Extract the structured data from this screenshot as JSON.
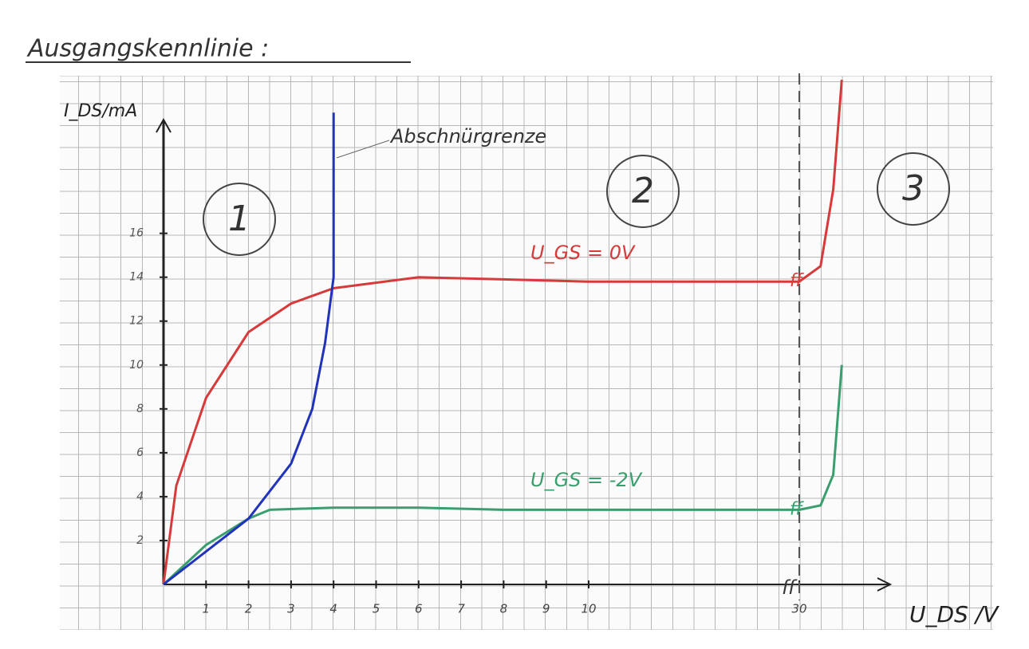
{
  "chart_data": {
    "type": "line",
    "title": "Ausgangskennlinie :",
    "x_label": "U_DS /V",
    "y_label": "I_DS/mA",
    "break_label": "ff",
    "region_labels": [
      "1",
      "2",
      "3"
    ],
    "xlim": [
      0,
      32
    ],
    "ylim": [
      0,
      23
    ],
    "xticks": [
      1,
      2,
      3,
      4,
      5,
      6,
      7,
      8,
      9,
      10,
      30
    ],
    "yticks": [
      2,
      4,
      6,
      8,
      10,
      12,
      14,
      16
    ],
    "series": [
      {
        "name": "U_GS = 0V",
        "color": "#d63a3a",
        "x": [
          0,
          0.3,
          1,
          2,
          3,
          4,
          6,
          8,
          10,
          30,
          30.5,
          30.8,
          31
        ],
        "values": [
          0,
          4.5,
          8.5,
          11.5,
          12.8,
          13.5,
          14,
          13.9,
          13.8,
          13.8,
          14.5,
          18,
          23
        ]
      },
      {
        "name": "U_GS = -2V",
        "color": "#3a9e6e",
        "x": [
          0,
          1,
          2,
          2.5,
          4,
          6,
          8,
          10,
          30,
          30.5,
          30.8,
          31
        ],
        "values": [
          0,
          1.8,
          3,
          3.4,
          3.5,
          3.5,
          3.4,
          3.4,
          3.4,
          3.6,
          5,
          10
        ]
      },
      {
        "name": "Abschnürgrenze",
        "color": "#2233bb",
        "x": [
          0,
          1,
          2,
          3,
          3.5,
          3.8,
          4,
          4
        ],
        "values": [
          0,
          1.5,
          3,
          5.5,
          8,
          11,
          14,
          21.5
        ]
      }
    ]
  }
}
